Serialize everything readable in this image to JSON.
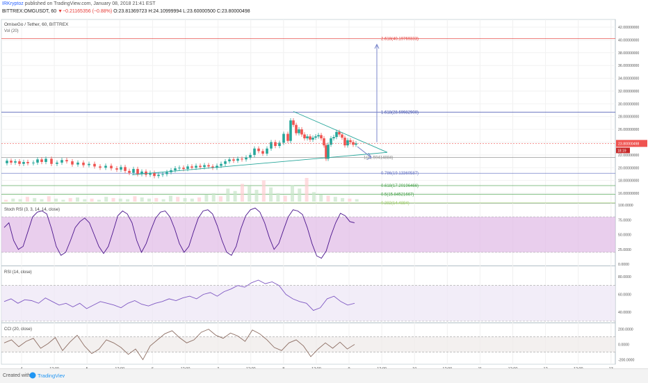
{
  "header": {
    "author": "IRKryptoz",
    "published_line": "published on TradingView.com, January 08, 2018 21:41 EST",
    "symbol_line": "BITTREX:OMGUSDT, 60",
    "change": "▼−0.21165356 (−0.88%)",
    "ohlc": "O:23.81369723 H:24.10999994 L:23.60000500 C:23.80000498"
  },
  "footer": {
    "created_with": "Created with",
    "brand": "TradingView"
  },
  "colors": {
    "up": "#26a69a",
    "down": "#ef5350",
    "fib_red": "#e53935",
    "fib_blue": "#3949ab",
    "fib_green": "#43a047",
    "stoch_band": "#e1bee7",
    "rsi_band": "#ede7f6",
    "cci_band": "#efebe9",
    "trend": "#26a69a",
    "arrow": "#7986cb",
    "price_marker": "#ef5350"
  },
  "chart_data": [
    {
      "type": "candlestick",
      "title": "OmiseGo / Tether, 60, BITTREX",
      "subtitle": "Vol (20)",
      "price_ticks": [
        "42.00000000",
        "40.00000000",
        "38.00000000",
        "36.00000000",
        "34.00000000",
        "32.00000000",
        "30.00000000",
        "28.00000000",
        "26.00000000",
        "24.00000000",
        "22.00000000",
        "20.00000000",
        "18.00000000",
        "16.00000000"
      ],
      "ylim": [
        14.7,
        43.2
      ],
      "x_ticks": [
        "4",
        "12:00",
        "5",
        "12:00",
        "6",
        "12:00",
        "7",
        "12:00",
        "8",
        "12:00",
        "9",
        "12:00",
        "10",
        "12:00",
        "11",
        "12:00",
        "12",
        "12:00",
        "13"
      ],
      "close_path": [
        [
          0,
          20.7
        ],
        [
          6,
          21.1
        ],
        [
          12,
          20.8
        ],
        [
          18,
          21.0
        ],
        [
          24,
          20.6
        ],
        [
          30,
          20.9
        ],
        [
          36,
          20.7
        ],
        [
          44,
          20.8
        ],
        [
          50,
          21.3
        ],
        [
          56,
          20.9
        ],
        [
          62,
          21.4
        ],
        [
          70,
          20.6
        ],
        [
          78,
          20.8
        ],
        [
          85,
          21.2
        ],
        [
          92,
          21.0
        ],
        [
          100,
          20.5
        ],
        [
          108,
          20.8
        ],
        [
          116,
          20.4
        ],
        [
          124,
          20.6
        ],
        [
          132,
          20.2
        ],
        [
          140,
          20.0
        ],
        [
          148,
          20.3
        ],
        [
          156,
          19.9
        ],
        [
          164,
          19.7
        ],
        [
          170,
          20.1
        ],
        [
          176,
          19.5
        ],
        [
          182,
          19.2
        ],
        [
          188,
          19.8
        ],
        [
          194,
          19.0
        ],
        [
          200,
          19.4
        ],
        [
          206,
          18.9
        ],
        [
          212,
          19.2
        ],
        [
          218,
          18.7
        ],
        [
          224,
          18.9
        ],
        [
          230,
          19.0
        ],
        [
          236,
          19.3
        ],
        [
          242,
          19.6
        ],
        [
          248,
          19.9
        ],
        [
          254,
          20.0
        ],
        [
          260,
          19.8
        ],
        [
          266,
          20.2
        ],
        [
          272,
          20.0
        ],
        [
          278,
          20.3
        ],
        [
          284,
          20.1
        ],
        [
          290,
          20.4
        ],
        [
          296,
          20.2
        ],
        [
          302,
          20.0
        ],
        [
          308,
          20.3
        ],
        [
          314,
          20.6
        ],
        [
          320,
          21.0
        ],
        [
          326,
          21.3
        ],
        [
          332,
          21.1
        ],
        [
          338,
          21.4
        ],
        [
          344,
          21.3
        ],
        [
          350,
          21.6
        ],
        [
          356,
          22.0
        ],
        [
          362,
          23.0
        ],
        [
          368,
          22.6
        ],
        [
          374,
          22.2
        ],
        [
          380,
          23.0
        ],
        [
          386,
          24.0
        ],
        [
          392,
          23.4
        ],
        [
          398,
          23.9
        ],
        [
          404,
          25.3
        ],
        [
          410,
          24.2
        ],
        [
          414,
          27.4
        ],
        [
          418,
          26.7
        ],
        [
          422,
          25.4
        ],
        [
          426,
          26.0
        ],
        [
          430,
          25.2
        ],
        [
          434,
          24.6
        ],
        [
          438,
          24.9
        ],
        [
          442,
          24.4
        ],
        [
          446,
          24.7
        ],
        [
          450,
          24.9
        ],
        [
          454,
          25.1
        ],
        [
          458,
          24.6
        ],
        [
          462,
          23.5
        ],
        [
          465,
          21.4
        ],
        [
          468,
          23.6
        ],
        [
          472,
          24.6
        ],
        [
          476,
          24.8
        ],
        [
          480,
          25.6
        ],
        [
          484,
          25.2
        ],
        [
          488,
          24.7
        ],
        [
          492,
          23.5
        ],
        [
          496,
          24.3
        ],
        [
          500,
          24.0
        ],
        [
          504,
          23.6
        ],
        [
          508,
          23.8
        ]
      ],
      "fib_levels": [
        {
          "label": "2.618(40.19769333)",
          "value": 40.19769333,
          "color": "#e53935",
          "label_left": false
        },
        {
          "label": "1.618(28.69982900)",
          "value": 28.699829,
          "color": "#3949ab",
          "label_left": false
        },
        {
          "label": "1(21.59414884)",
          "value": 21.59414884,
          "color": "#888888",
          "label_left": true
        },
        {
          "label": "0.786(19.13360587)",
          "value": 19.13360587,
          "color": "#5c6bc0",
          "label_left": false
        },
        {
          "label": "0.618(17.20196466)",
          "value": 17.20196466,
          "color": "#43a047",
          "label_left": false
        },
        {
          "label": "0.5(15.84521667)",
          "value": 15.84521667,
          "color": "#43a047",
          "label_left": false
        },
        {
          "label": "0.382(14.4884)",
          "value": 14.4884,
          "color": "#9ccc65",
          "label_left": false
        }
      ],
      "current_price": "23.80000498",
      "countdown": "18:19"
    },
    {
      "type": "line",
      "title": "Stoch RSI (3, 3, 14, 14, close)",
      "ticks": [
        "100.0000",
        "75.0000",
        "50.0000",
        "25.0000",
        "0.0000"
      ],
      "ylim": [
        0,
        100
      ],
      "band": [
        20,
        80
      ],
      "series": [
        {
          "values": [
            62,
            70,
            40,
            25,
            30,
            55,
            80,
            88,
            90,
            85,
            60,
            30,
            15,
            20,
            40,
            62,
            72,
            78,
            70,
            50,
            30,
            18,
            30,
            55,
            82,
            90,
            85,
            70,
            40,
            20,
            35,
            58,
            78,
            88,
            90,
            80,
            60,
            35,
            20,
            30,
            55,
            78,
            90,
            92,
            85,
            65,
            40,
            20,
            15,
            30,
            60,
            82,
            92,
            95,
            88,
            70,
            45,
            25,
            35,
            58,
            80,
            92,
            90,
            84,
            62,
            35,
            14,
            10,
            22,
            48,
            70,
            86,
            82,
            72,
            70
          ]
        }
      ]
    },
    {
      "type": "line",
      "title": "RSI (14, close)",
      "ticks": [
        "80.0000",
        "60.0000",
        "40.0000"
      ],
      "ylim": [
        30,
        90
      ],
      "band": [
        30,
        70
      ],
      "series": [
        {
          "values": [
            52,
            55,
            50,
            54,
            53,
            50,
            56,
            52,
            48,
            50,
            46,
            50,
            44,
            48,
            52,
            50,
            48,
            45,
            50,
            53,
            49,
            47,
            50,
            52,
            55,
            53,
            56,
            58,
            55,
            60,
            62,
            58,
            63,
            66,
            70,
            68,
            73,
            76,
            72,
            74,
            70,
            60,
            55,
            52,
            50,
            42,
            45,
            55,
            58,
            52,
            48,
            50
          ]
        }
      ]
    },
    {
      "type": "line",
      "title": "CCI (20, close)",
      "ticks": [
        "200.0000",
        "0.0000",
        "-200.0000"
      ],
      "ylim": [
        -260,
        260
      ],
      "band": [
        -100,
        100
      ],
      "series": [
        {
          "values": [
            20,
            60,
            -30,
            40,
            80,
            -50,
            10,
            90,
            -80,
            30,
            120,
            -20,
            -120,
            -60,
            60,
            20,
            -40,
            -130,
            -60,
            -200,
            -20,
            60,
            140,
            180,
            90,
            20,
            60,
            160,
            200,
            120,
            80,
            150,
            110,
            40,
            190,
            140,
            60,
            -40,
            -80,
            20,
            60,
            -20,
            -160,
            -60,
            20,
            -50,
            30,
            -60,
            0
          ]
        }
      ]
    }
  ]
}
